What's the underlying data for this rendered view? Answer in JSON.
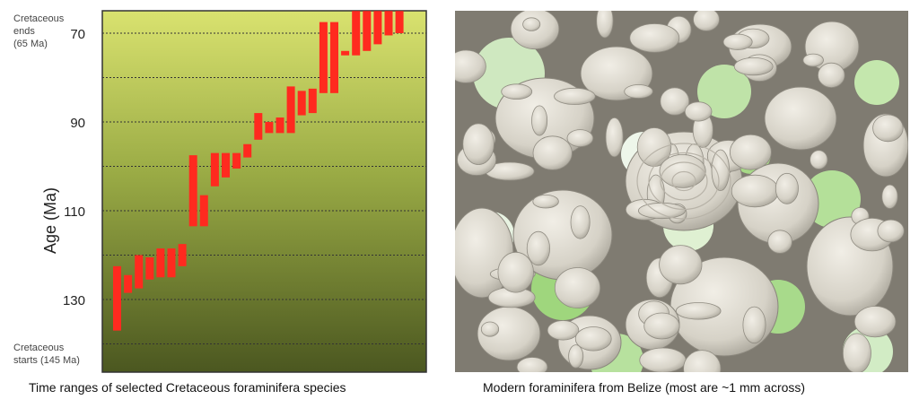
{
  "left_panel": {
    "caption": "Time ranges of selected Cretaceous foraminifera species",
    "note_top_1": "Cretaceous",
    "note_top_2": "ends",
    "note_top_3": "(65 Ma)",
    "note_bottom_1": "Cretaceous",
    "note_bottom_2": "starts (145 Ma)"
  },
  "right_panel": {
    "caption": "Modern foraminifera from Belize (most are ~1 mm across)",
    "image_description": "close-up photo of many small pale foraminifera shells on green-tinged white background"
  },
  "chart_data": {
    "type": "bar",
    "orientation": "vertical-range",
    "ylabel": "Age (Ma)",
    "ylim": [
      65,
      145
    ],
    "y_inverted": true,
    "yticks": [
      70,
      90,
      110,
      130
    ],
    "grid": "dashed horizontal every 10 Ma",
    "bar_color": "#ff2a1f",
    "background_gradient": [
      "#d8e070",
      "#4e5a22"
    ],
    "series": [
      {
        "values": [
          [
            122.5,
            137.0
          ],
          [
            124.5,
            128.5
          ],
          [
            120.0,
            127.5
          ],
          [
            120.5,
            125.5
          ],
          [
            118.5,
            125.0
          ],
          [
            118.5,
            125.0
          ],
          [
            117.5,
            122.5
          ],
          [
            97.5,
            113.5
          ],
          [
            106.5,
            113.5
          ],
          [
            97.0,
            104.5
          ],
          [
            97.0,
            102.5
          ],
          [
            97.0,
            100.5
          ],
          [
            95.0,
            98.0
          ],
          [
            88.0,
            94.0
          ],
          [
            90.0,
            92.5
          ],
          [
            89.0,
            92.5
          ],
          [
            82.0,
            92.5
          ],
          [
            83.0,
            88.5
          ],
          [
            82.5,
            88.0
          ],
          [
            67.5,
            83.5
          ],
          [
            67.5,
            83.5
          ],
          [
            74.0,
            75.0
          ],
          [
            65.0,
            75.0
          ],
          [
            65.0,
            74.0
          ],
          [
            65.0,
            72.5
          ],
          [
            65.0,
            70.5
          ],
          [
            65.0,
            70.0
          ]
        ]
      }
    ]
  }
}
